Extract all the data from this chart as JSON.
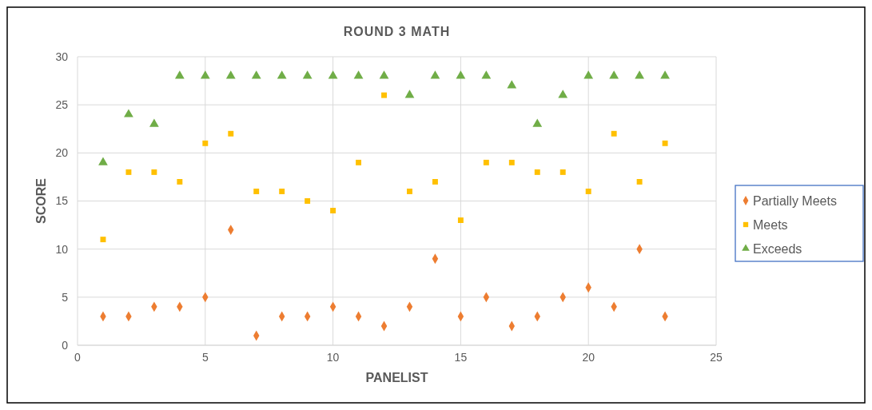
{
  "chart_data": {
    "type": "scatter",
    "title": "ROUND 3 MATH",
    "xlabel": "PANELIST",
    "ylabel": "SCORE",
    "x": [
      1,
      2,
      3,
      4,
      5,
      6,
      7,
      8,
      9,
      10,
      11,
      12,
      13,
      14,
      15,
      16,
      17,
      18,
      19,
      20,
      21,
      22,
      23
    ],
    "xlim": [
      0,
      25
    ],
    "xticks": [
      0,
      5,
      10,
      15,
      20,
      25
    ],
    "ylim": [
      0,
      30
    ],
    "yticks": [
      0,
      5,
      10,
      15,
      20,
      25,
      30
    ],
    "grid": true,
    "legend": "right",
    "series": [
      {
        "name": "Partially Meets",
        "color": "#ed7d31",
        "marker": "diamond",
        "values": [
          3,
          3,
          4,
          4,
          5,
          12,
          1,
          3,
          3,
          4,
          3,
          2,
          4,
          9,
          3,
          5,
          2,
          3,
          5,
          6,
          4,
          10,
          3
        ]
      },
      {
        "name": "Meets",
        "color": "#ffc000",
        "marker": "square",
        "values": [
          11,
          18,
          18,
          17,
          21,
          22,
          16,
          16,
          15,
          14,
          19,
          26,
          16,
          17,
          13,
          19,
          19,
          18,
          18,
          16,
          22,
          17,
          21
        ]
      },
      {
        "name": "Exceeds",
        "color": "#70ad47",
        "marker": "triangle",
        "values": [
          19,
          24,
          23,
          28,
          28,
          28,
          28,
          28,
          28,
          28,
          28,
          28,
          26,
          28,
          28,
          28,
          27,
          23,
          26,
          28,
          28,
          28,
          28
        ]
      }
    ]
  }
}
